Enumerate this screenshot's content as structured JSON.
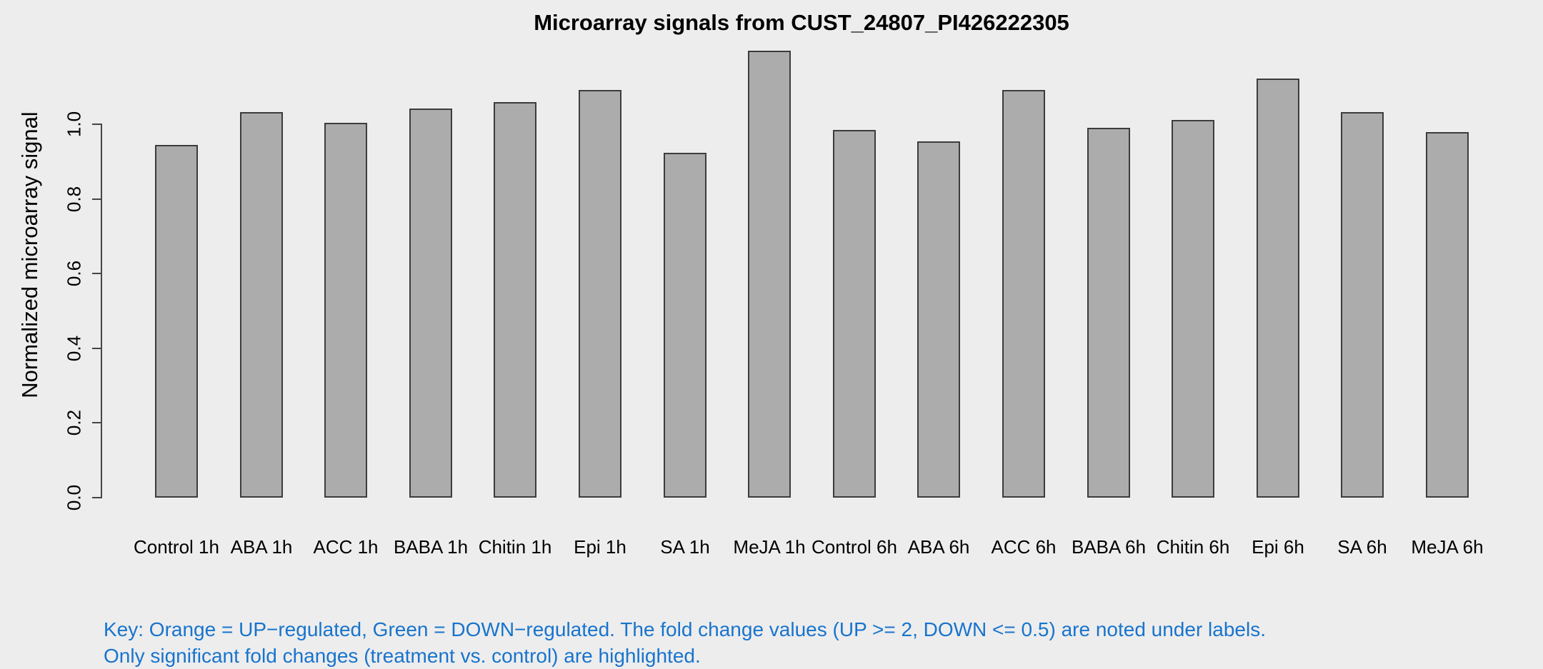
{
  "title": "Microarray signals from CUST_24807_PI426222305",
  "y_axis": {
    "label": "Normalized microarray signal",
    "tick_labels": [
      "0.0",
      "0.2",
      "0.4",
      "0.6",
      "0.8",
      "1.0"
    ]
  },
  "key": {
    "line1": "Key: Orange = UP−regulated, Green = DOWN−regulated. The fold change values (UP >= 2, DOWN <= 0.5) are noted under labels.",
    "line2": "Only significant fold changes (treatment vs. control) are highlighted.",
    "text_color": "#1874CD"
  },
  "colors": {
    "background": "#EDEDED",
    "bar_fill": "#ACACAC",
    "bar_border": "#3C3C3C",
    "axis": "#454545",
    "text": "#000000"
  },
  "chart_data": {
    "type": "bar",
    "title": "Microarray signals from CUST_24807_PI426222305",
    "categories": [
      "Control 1h",
      "ABA 1h",
      "ACC 1h",
      "BABA 1h",
      "Chitin 1h",
      "Epi 1h",
      "SA 1h",
      "MeJA 1h",
      "Control 6h",
      "ABA 6h",
      "ACC 6h",
      "BABA 6h",
      "Chitin 6h",
      "Epi 6h",
      "SA 6h",
      "MeJA 6h"
    ],
    "values": [
      0.945,
      1.033,
      1.004,
      1.042,
      1.059,
      1.092,
      0.924,
      1.197,
      0.985,
      0.954,
      1.092,
      0.99,
      1.011,
      1.122,
      1.033,
      0.979
    ],
    "xlabel": "",
    "ylabel": "Normalized microarray signal",
    "ylim": [
      0,
      1.2
    ],
    "yticks": [
      0.0,
      0.2,
      0.4,
      0.6,
      0.8,
      1.0
    ],
    "grid": false,
    "legend_position": "none",
    "bar_fill": "#ACACAC"
  }
}
